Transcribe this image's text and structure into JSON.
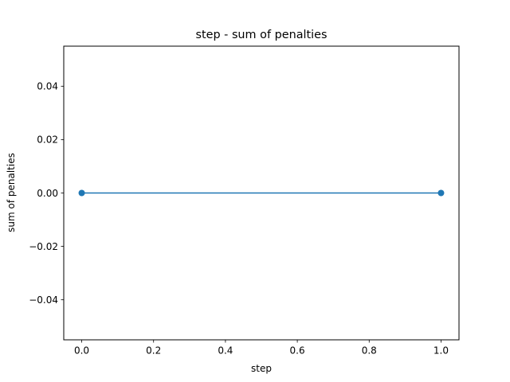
{
  "chart_data": {
    "type": "line",
    "title": "step - sum of penalties",
    "xlabel": "step",
    "ylabel": "sum of penalties",
    "xlim": [
      -0.05,
      1.05
    ],
    "ylim": [
      -0.055,
      0.055
    ],
    "xticks": [
      0.0,
      0.2,
      0.4,
      0.6,
      0.8,
      1.0
    ],
    "xtick_labels": [
      "0.0",
      "0.2",
      "0.4",
      "0.6",
      "0.8",
      "1.0"
    ],
    "yticks": [
      -0.04,
      -0.02,
      0.0,
      0.02,
      0.04
    ],
    "ytick_labels": [
      "−0.04",
      "−0.02",
      "0.00",
      "0.02",
      "0.04"
    ],
    "grid": false,
    "series": [
      {
        "x": [
          0,
          1
        ],
        "y": [
          0,
          0
        ],
        "color": "#1f77b4",
        "marker": "circle"
      }
    ]
  }
}
